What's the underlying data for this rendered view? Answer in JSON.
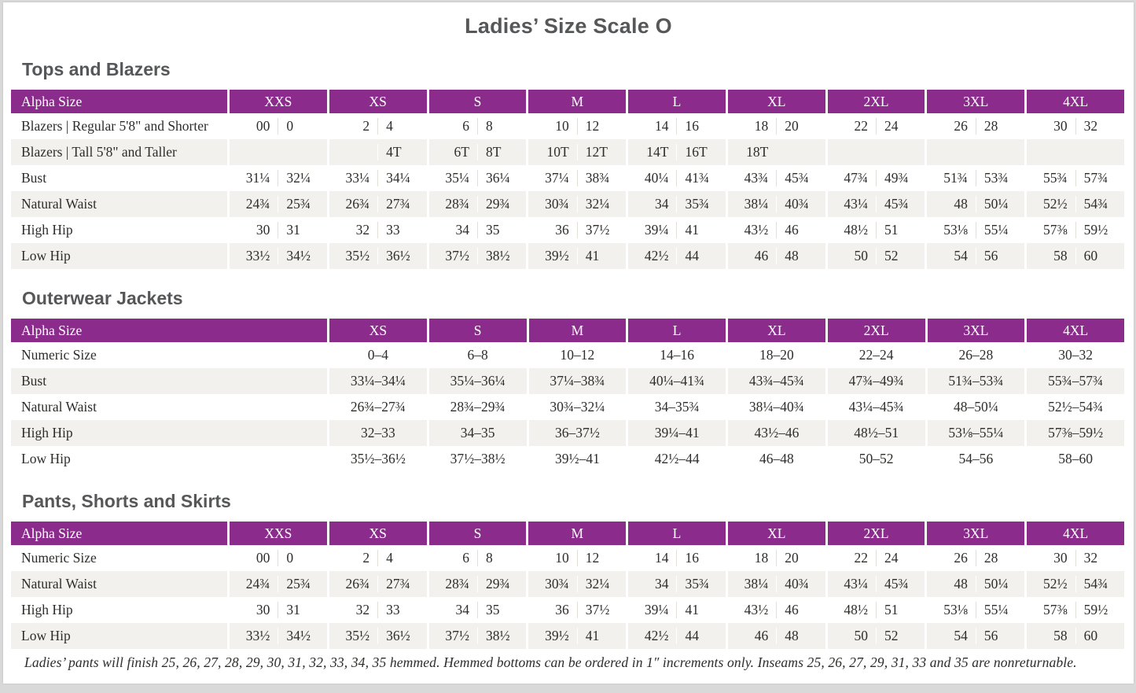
{
  "page": {
    "title": "Ladies’ Size Scale O",
    "footnote": "Ladies’ pants will finish 25, 26, 27, 28, 29, 30, 31, 32, 33, 34, 35 hemmed. Hemmed bottoms can be ordered in 1″ increments only. Inseams 25, 26, 27, 29, 31, 33 and 35 are nonreturnable."
  },
  "colors": {
    "header_purple": "#8b2c8d",
    "row_alt_gray": "#f2f1ee",
    "heading_gray": "#565759",
    "text": "#2e2d2b"
  },
  "tables": [
    {
      "section_title": "Tops and Blazers",
      "header_label": "Alpha Size",
      "split_columns": true,
      "sizes": [
        "XXS",
        "XS",
        "S",
        "M",
        "L",
        "XL",
        "2XL",
        "3XL",
        "4XL"
      ],
      "rows": [
        {
          "label": "Blazers | Regular 5'8\" and Shorter",
          "values": [
            [
              "00",
              "0"
            ],
            [
              "2",
              "4"
            ],
            [
              "6",
              "8"
            ],
            [
              "10",
              "12"
            ],
            [
              "14",
              "16"
            ],
            [
              "18",
              "20"
            ],
            [
              "22",
              "24"
            ],
            [
              "26",
              "28"
            ],
            [
              "30",
              "32"
            ]
          ]
        },
        {
          "label": "Blazers | Tall 5'8\" and Taller",
          "values": [
            [
              "",
              ""
            ],
            [
              "",
              "4T"
            ],
            [
              "6T",
              "8T"
            ],
            [
              "10T",
              "12T"
            ],
            [
              "14T",
              "16T"
            ],
            [
              "18T",
              ""
            ],
            [
              "",
              ""
            ],
            [
              "",
              ""
            ],
            [
              "",
              ""
            ]
          ]
        },
        {
          "label": "Bust",
          "values": [
            [
              "31¼",
              "32¼"
            ],
            [
              "33¼",
              "34¼"
            ],
            [
              "35¼",
              "36¼"
            ],
            [
              "37¼",
              "38¾"
            ],
            [
              "40¼",
              "41¾"
            ],
            [
              "43¾",
              "45¾"
            ],
            [
              "47¾",
              "49¾"
            ],
            [
              "51¾",
              "53¾"
            ],
            [
              "55¾",
              "57¾"
            ]
          ]
        },
        {
          "label": "Natural Waist",
          "values": [
            [
              "24¾",
              "25¾"
            ],
            [
              "26¾",
              "27¾"
            ],
            [
              "28¾",
              "29¾"
            ],
            [
              "30¾",
              "32¼"
            ],
            [
              "34",
              "35¾"
            ],
            [
              "38¼",
              "40¾"
            ],
            [
              "43¼",
              "45¾"
            ],
            [
              "48",
              "50¼"
            ],
            [
              "52½",
              "54¾"
            ]
          ]
        },
        {
          "label": "High Hip",
          "values": [
            [
              "30",
              "31"
            ],
            [
              "32",
              "33"
            ],
            [
              "34",
              "35"
            ],
            [
              "36",
              "37½"
            ],
            [
              "39¼",
              "41"
            ],
            [
              "43½",
              "46"
            ],
            [
              "48½",
              "51"
            ],
            [
              "53⅛",
              "55¼"
            ],
            [
              "57⅜",
              "59½"
            ]
          ]
        },
        {
          "label": "Low Hip",
          "values": [
            [
              "33½",
              "34½"
            ],
            [
              "35½",
              "36½"
            ],
            [
              "37½",
              "38½"
            ],
            [
              "39½",
              "41"
            ],
            [
              "42½",
              "44"
            ],
            [
              "46",
              "48"
            ],
            [
              "50",
              "52"
            ],
            [
              "54",
              "56"
            ],
            [
              "58",
              "60"
            ]
          ]
        }
      ]
    },
    {
      "section_title": "Outerwear Jackets",
      "header_label": "Alpha Size",
      "split_columns": false,
      "sizes": [
        "XS",
        "S",
        "M",
        "L",
        "XL",
        "2XL",
        "3XL",
        "4XL"
      ],
      "rows": [
        {
          "label": "Numeric Size",
          "values": [
            "0–4",
            "6–8",
            "10–12",
            "14–16",
            "18–20",
            "22–24",
            "26–28",
            "30–32"
          ]
        },
        {
          "label": "Bust",
          "values": [
            "33¼–34¼",
            "35¼–36¼",
            "37¼–38¾",
            "40¼–41¾",
            "43¾–45¾",
            "47¾–49¾",
            "51¾–53¾",
            "55¾–57¾"
          ]
        },
        {
          "label": "Natural Waist",
          "values": [
            "26¾–27¾",
            "28¾–29¾",
            "30¾–32¼",
            "34–35¾",
            "38¼–40¾",
            "43¼–45¾",
            "48–50¼",
            "52½–54¾"
          ]
        },
        {
          "label": "High Hip",
          "values": [
            "32–33",
            "34–35",
            "36–37½",
            "39¼–41",
            "43½–46",
            "48½–51",
            "53⅛–55¼",
            "57⅜–59½"
          ]
        },
        {
          "label": "Low Hip",
          "values": [
            "35½–36½",
            "37½–38½",
            "39½–41",
            "42½–44",
            "46–48",
            "50–52",
            "54–56",
            "58–60"
          ]
        }
      ]
    },
    {
      "section_title": "Pants, Shorts and Skirts",
      "header_label": "Alpha Size",
      "split_columns": true,
      "sizes": [
        "XXS",
        "XS",
        "S",
        "M",
        "L",
        "XL",
        "2XL",
        "3XL",
        "4XL"
      ],
      "rows": [
        {
          "label": "Numeric Size",
          "values": [
            [
              "00",
              "0"
            ],
            [
              "2",
              "4"
            ],
            [
              "6",
              "8"
            ],
            [
              "10",
              "12"
            ],
            [
              "14",
              "16"
            ],
            [
              "18",
              "20"
            ],
            [
              "22",
              "24"
            ],
            [
              "26",
              "28"
            ],
            [
              "30",
              "32"
            ]
          ]
        },
        {
          "label": "Natural Waist",
          "values": [
            [
              "24¾",
              "25¾"
            ],
            [
              "26¾",
              "27¾"
            ],
            [
              "28¾",
              "29¾"
            ],
            [
              "30¾",
              "32¼"
            ],
            [
              "34",
              "35¾"
            ],
            [
              "38¼",
              "40¾"
            ],
            [
              "43¼",
              "45¾"
            ],
            [
              "48",
              "50¼"
            ],
            [
              "52½",
              "54¾"
            ]
          ]
        },
        {
          "label": "High Hip",
          "values": [
            [
              "30",
              "31"
            ],
            [
              "32",
              "33"
            ],
            [
              "34",
              "35"
            ],
            [
              "36",
              "37½"
            ],
            [
              "39¼",
              "41"
            ],
            [
              "43½",
              "46"
            ],
            [
              "48½",
              "51"
            ],
            [
              "53⅛",
              "55¼"
            ],
            [
              "57⅜",
              "59½"
            ]
          ]
        },
        {
          "label": "Low Hip",
          "values": [
            [
              "33½",
              "34½"
            ],
            [
              "35½",
              "36½"
            ],
            [
              "37½",
              "38½"
            ],
            [
              "39½",
              "41"
            ],
            [
              "42½",
              "44"
            ],
            [
              "46",
              "48"
            ],
            [
              "50",
              "52"
            ],
            [
              "54",
              "56"
            ],
            [
              "58",
              "60"
            ]
          ]
        }
      ]
    }
  ]
}
